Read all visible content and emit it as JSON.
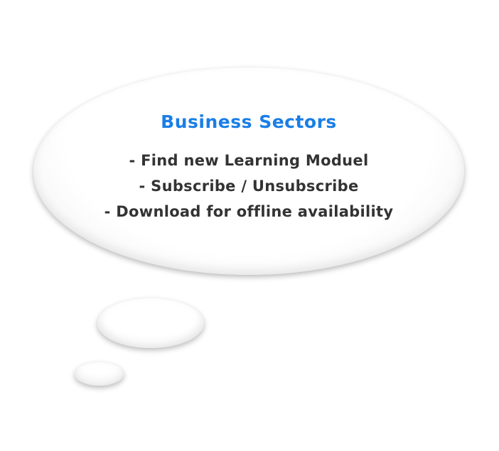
{
  "thought_bubble": {
    "title": "Business Sectors",
    "lines": [
      "- Find new Learning Moduel",
      "- Subscribe / Unsubscribe",
      "- Download for offline availability"
    ]
  },
  "colors": {
    "title": "#1a7ee6",
    "text": "#333333",
    "bubble": "#ffffff"
  }
}
